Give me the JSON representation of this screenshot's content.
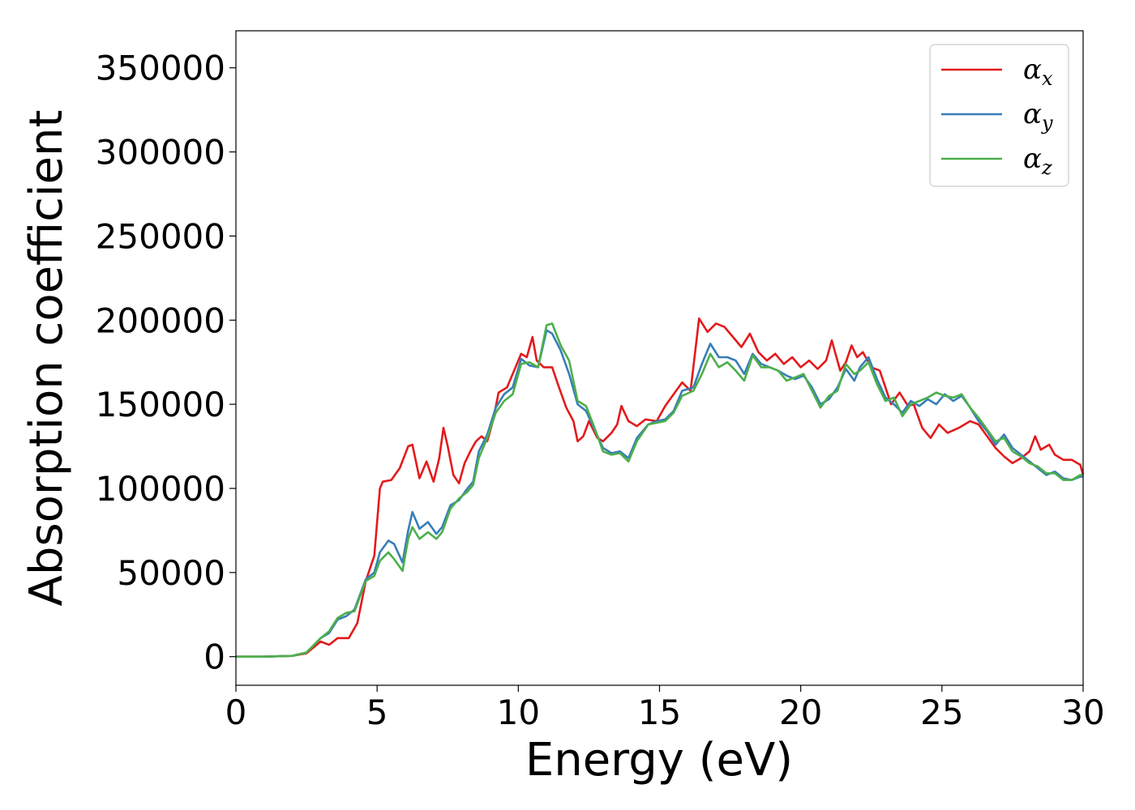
{
  "chart_data": {
    "type": "line",
    "xlabel": "Energy (eV)",
    "ylabel": "Absorption coefficient",
    "xlim": [
      0,
      30
    ],
    "ylim": [
      -17000,
      372000
    ],
    "xticks": [
      0,
      5,
      10,
      15,
      20,
      25,
      30
    ],
    "xtick_labels": [
      "0",
      "5",
      "10",
      "15",
      "20",
      "25",
      "30"
    ],
    "yticks": [
      0,
      50000,
      100000,
      150000,
      200000,
      250000,
      300000,
      350000
    ],
    "ytick_labels": [
      "0",
      "50000",
      "100000",
      "150000",
      "200000",
      "250000",
      "300000",
      "350000"
    ],
    "grid": false,
    "legend_position": "top-right",
    "series": [
      {
        "name": "α",
        "subscript": "x",
        "color": "#e41a1c",
        "points": [
          [
            0,
            0
          ],
          [
            1,
            0
          ],
          [
            2,
            500
          ],
          [
            2.5,
            2000
          ],
          [
            3,
            9000
          ],
          [
            3.3,
            7000
          ],
          [
            3.6,
            11000
          ],
          [
            4,
            11000
          ],
          [
            4.3,
            20000
          ],
          [
            4.6,
            45000
          ],
          [
            4.9,
            60000
          ],
          [
            5.1,
            100000
          ],
          [
            5.2,
            104000
          ],
          [
            5.5,
            105000
          ],
          [
            5.8,
            112000
          ],
          [
            6.1,
            125000
          ],
          [
            6.25,
            126000
          ],
          [
            6.5,
            106000
          ],
          [
            6.75,
            116000
          ],
          [
            7.0,
            104000
          ],
          [
            7.2,
            118000
          ],
          [
            7.35,
            136000
          ],
          [
            7.5,
            125000
          ],
          [
            7.7,
            108000
          ],
          [
            7.9,
            103000
          ],
          [
            8.1,
            115000
          ],
          [
            8.3,
            122000
          ],
          [
            8.5,
            128000
          ],
          [
            8.7,
            131000
          ],
          [
            8.9,
            128000
          ],
          [
            9.1,
            140000
          ],
          [
            9.3,
            157000
          ],
          [
            9.6,
            160000
          ],
          [
            9.9,
            172000
          ],
          [
            10.1,
            180000
          ],
          [
            10.3,
            178000
          ],
          [
            10.5,
            190000
          ],
          [
            10.65,
            176000
          ],
          [
            10.9,
            172000
          ],
          [
            11.2,
            172000
          ],
          [
            11.4,
            162000
          ],
          [
            11.7,
            148000
          ],
          [
            11.95,
            140000
          ],
          [
            12.1,
            128000
          ],
          [
            12.3,
            131000
          ],
          [
            12.5,
            140000
          ],
          [
            12.8,
            130000
          ],
          [
            13.0,
            128000
          ],
          [
            13.3,
            133000
          ],
          [
            13.5,
            138000
          ],
          [
            13.65,
            149000
          ],
          [
            13.9,
            140000
          ],
          [
            14.2,
            137000
          ],
          [
            14.5,
            141000
          ],
          [
            14.9,
            140000
          ],
          [
            15.2,
            149000
          ],
          [
            15.5,
            156000
          ],
          [
            15.8,
            163000
          ],
          [
            16.1,
            158000
          ],
          [
            16.4,
            201000
          ],
          [
            16.7,
            193000
          ],
          [
            17.0,
            198000
          ],
          [
            17.3,
            196000
          ],
          [
            17.6,
            190000
          ],
          [
            17.9,
            184000
          ],
          [
            18.2,
            192000
          ],
          [
            18.5,
            181000
          ],
          [
            18.8,
            176000
          ],
          [
            19.1,
            180000
          ],
          [
            19.4,
            174000
          ],
          [
            19.7,
            178000
          ],
          [
            20.0,
            172000
          ],
          [
            20.3,
            176000
          ],
          [
            20.6,
            171000
          ],
          [
            20.9,
            176000
          ],
          [
            21.1,
            188000
          ],
          [
            21.4,
            170000
          ],
          [
            21.6,
            175000
          ],
          [
            21.8,
            185000
          ],
          [
            22.0,
            178000
          ],
          [
            22.2,
            181000
          ],
          [
            22.5,
            172000
          ],
          [
            22.8,
            170000
          ],
          [
            23.0,
            160000
          ],
          [
            23.2,
            150000
          ],
          [
            23.5,
            157000
          ],
          [
            23.8,
            149000
          ],
          [
            24.0,
            150000
          ],
          [
            24.3,
            136000
          ],
          [
            24.6,
            130000
          ],
          [
            24.9,
            138000
          ],
          [
            25.2,
            133000
          ],
          [
            25.6,
            136000
          ],
          [
            26.0,
            140000
          ],
          [
            26.3,
            138000
          ],
          [
            26.6,
            131000
          ],
          [
            26.9,
            124000
          ],
          [
            27.2,
            119000
          ],
          [
            27.5,
            115000
          ],
          [
            27.8,
            118000
          ],
          [
            28.1,
            122000
          ],
          [
            28.3,
            131000
          ],
          [
            28.5,
            123000
          ],
          [
            28.8,
            126000
          ],
          [
            29.0,
            120000
          ],
          [
            29.3,
            117000
          ],
          [
            29.6,
            117000
          ],
          [
            29.9,
            114000
          ],
          [
            30,
            108000
          ]
        ]
      },
      {
        "name": "α",
        "subscript": "y",
        "color": "#377eb8",
        "points": [
          [
            0,
            0
          ],
          [
            1,
            0
          ],
          [
            2,
            500
          ],
          [
            2.5,
            2500
          ],
          [
            3,
            11000
          ],
          [
            3.3,
            14000
          ],
          [
            3.6,
            22000
          ],
          [
            3.9,
            24000
          ],
          [
            4.2,
            28000
          ],
          [
            4.6,
            46000
          ],
          [
            4.9,
            50000
          ],
          [
            5.1,
            62000
          ],
          [
            5.4,
            69000
          ],
          [
            5.6,
            67000
          ],
          [
            5.9,
            56000
          ],
          [
            6.1,
            75000
          ],
          [
            6.25,
            86000
          ],
          [
            6.5,
            76000
          ],
          [
            6.8,
            80000
          ],
          [
            7.1,
            73000
          ],
          [
            7.3,
            77000
          ],
          [
            7.6,
            90000
          ],
          [
            7.9,
            93000
          ],
          [
            8.2,
            100000
          ],
          [
            8.4,
            104000
          ],
          [
            8.6,
            122000
          ],
          [
            8.9,
            132000
          ],
          [
            9.2,
            148000
          ],
          [
            9.5,
            156000
          ],
          [
            9.8,
            160000
          ],
          [
            10.1,
            177000
          ],
          [
            10.4,
            173000
          ],
          [
            10.7,
            172000
          ],
          [
            11.0,
            194000
          ],
          [
            11.2,
            192000
          ],
          [
            11.5,
            182000
          ],
          [
            11.8,
            168000
          ],
          [
            12.1,
            150000
          ],
          [
            12.4,
            146000
          ],
          [
            12.7,
            135000
          ],
          [
            13.0,
            124000
          ],
          [
            13.3,
            121000
          ],
          [
            13.6,
            122000
          ],
          [
            13.9,
            118000
          ],
          [
            14.2,
            130000
          ],
          [
            14.6,
            138000
          ],
          [
            14.9,
            140000
          ],
          [
            15.2,
            141000
          ],
          [
            15.5,
            146000
          ],
          [
            15.8,
            158000
          ],
          [
            16.2,
            160000
          ],
          [
            16.5,
            174000
          ],
          [
            16.8,
            186000
          ],
          [
            17.1,
            178000
          ],
          [
            17.4,
            178000
          ],
          [
            17.7,
            176000
          ],
          [
            18.0,
            168000
          ],
          [
            18.3,
            180000
          ],
          [
            18.6,
            174000
          ],
          [
            18.9,
            172000
          ],
          [
            19.2,
            170000
          ],
          [
            19.5,
            167000
          ],
          [
            19.8,
            165000
          ],
          [
            20.1,
            167000
          ],
          [
            20.4,
            160000
          ],
          [
            20.7,
            150000
          ],
          [
            21.0,
            153000
          ],
          [
            21.3,
            160000
          ],
          [
            21.6,
            171000
          ],
          [
            21.9,
            164000
          ],
          [
            22.1,
            172000
          ],
          [
            22.4,
            178000
          ],
          [
            22.7,
            165000
          ],
          [
            23.0,
            154000
          ],
          [
            23.3,
            150000
          ],
          [
            23.6,
            145000
          ],
          [
            23.9,
            152000
          ],
          [
            24.2,
            149000
          ],
          [
            24.5,
            153000
          ],
          [
            24.8,
            150000
          ],
          [
            25.1,
            156000
          ],
          [
            25.4,
            152000
          ],
          [
            25.7,
            155000
          ],
          [
            26.0,
            148000
          ],
          [
            26.3,
            140000
          ],
          [
            26.6,
            134000
          ],
          [
            26.9,
            126000
          ],
          [
            27.2,
            132000
          ],
          [
            27.5,
            124000
          ],
          [
            27.8,
            120000
          ],
          [
            28.1,
            116000
          ],
          [
            28.4,
            112000
          ],
          [
            28.7,
            108000
          ],
          [
            29.0,
            110000
          ],
          [
            29.3,
            106000
          ],
          [
            29.6,
            105000
          ],
          [
            29.9,
            107000
          ],
          [
            30,
            107000
          ]
        ]
      },
      {
        "name": "α",
        "subscript": "z",
        "color": "#4daf4a",
        "points": [
          [
            0,
            0
          ],
          [
            1,
            0
          ],
          [
            2,
            500
          ],
          [
            2.5,
            2500
          ],
          [
            3,
            11000
          ],
          [
            3.3,
            15000
          ],
          [
            3.6,
            23000
          ],
          [
            3.9,
            26000
          ],
          [
            4.2,
            27000
          ],
          [
            4.6,
            45000
          ],
          [
            4.9,
            48000
          ],
          [
            5.1,
            57000
          ],
          [
            5.4,
            62000
          ],
          [
            5.6,
            58000
          ],
          [
            5.9,
            51000
          ],
          [
            6.1,
            70000
          ],
          [
            6.25,
            77000
          ],
          [
            6.5,
            70000
          ],
          [
            6.8,
            74000
          ],
          [
            7.1,
            70000
          ],
          [
            7.3,
            74000
          ],
          [
            7.6,
            88000
          ],
          [
            7.9,
            94000
          ],
          [
            8.2,
            98000
          ],
          [
            8.4,
            102000
          ],
          [
            8.6,
            118000
          ],
          [
            8.9,
            130000
          ],
          [
            9.2,
            145000
          ],
          [
            9.5,
            152000
          ],
          [
            9.8,
            156000
          ],
          [
            10.1,
            174000
          ],
          [
            10.4,
            175000
          ],
          [
            10.7,
            172000
          ],
          [
            11.0,
            197000
          ],
          [
            11.2,
            198000
          ],
          [
            11.5,
            185000
          ],
          [
            11.8,
            176000
          ],
          [
            12.1,
            152000
          ],
          [
            12.4,
            149000
          ],
          [
            12.7,
            136000
          ],
          [
            13.0,
            122000
          ],
          [
            13.3,
            120000
          ],
          [
            13.6,
            121000
          ],
          [
            13.9,
            116000
          ],
          [
            14.2,
            128000
          ],
          [
            14.6,
            138000
          ],
          [
            14.9,
            139000
          ],
          [
            15.2,
            140000
          ],
          [
            15.5,
            145000
          ],
          [
            15.8,
            155000
          ],
          [
            16.2,
            158000
          ],
          [
            16.5,
            168000
          ],
          [
            16.8,
            180000
          ],
          [
            17.1,
            172000
          ],
          [
            17.4,
            175000
          ],
          [
            17.7,
            170000
          ],
          [
            18.0,
            164000
          ],
          [
            18.3,
            179000
          ],
          [
            18.6,
            172000
          ],
          [
            18.9,
            172000
          ],
          [
            19.2,
            170000
          ],
          [
            19.5,
            164000
          ],
          [
            19.8,
            166000
          ],
          [
            20.1,
            168000
          ],
          [
            20.4,
            158000
          ],
          [
            20.7,
            148000
          ],
          [
            21.0,
            155000
          ],
          [
            21.3,
            158000
          ],
          [
            21.6,
            174000
          ],
          [
            21.9,
            168000
          ],
          [
            22.1,
            170000
          ],
          [
            22.4,
            175000
          ],
          [
            22.7,
            162000
          ],
          [
            23.0,
            152000
          ],
          [
            23.3,
            154000
          ],
          [
            23.6,
            143000
          ],
          [
            23.9,
            150000
          ],
          [
            24.2,
            152000
          ],
          [
            24.5,
            154000
          ],
          [
            24.8,
            157000
          ],
          [
            25.1,
            155000
          ],
          [
            25.4,
            154000
          ],
          [
            25.7,
            156000
          ],
          [
            26.0,
            148000
          ],
          [
            26.3,
            142000
          ],
          [
            26.6,
            135000
          ],
          [
            26.9,
            128000
          ],
          [
            27.2,
            130000
          ],
          [
            27.5,
            122000
          ],
          [
            27.8,
            119000
          ],
          [
            28.1,
            115000
          ],
          [
            28.4,
            113000
          ],
          [
            28.7,
            109000
          ],
          [
            29.0,
            109000
          ],
          [
            29.3,
            105000
          ],
          [
            29.6,
            105000
          ],
          [
            29.9,
            108000
          ],
          [
            30,
            108000
          ]
        ]
      }
    ]
  }
}
